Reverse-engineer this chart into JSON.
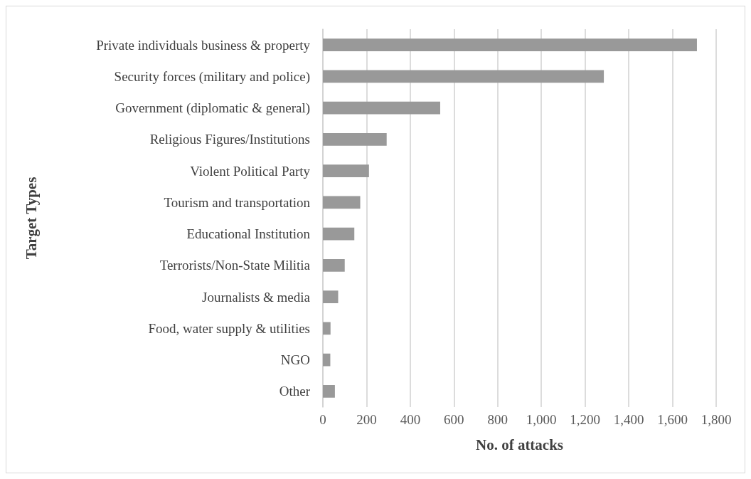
{
  "chart_data": {
    "type": "bar",
    "orientation": "horizontal",
    "xlabel": "No. of attacks",
    "ylabel": "Target Types",
    "categories": [
      "Private individuals business & property",
      "Security forces (military and police)",
      "Government (diplomatic & general)",
      "Religious Figures/Institutions",
      "Violent Political Party",
      "Tourism and transportation",
      "Educational Institution",
      "Terrorists/Non-State Militia",
      "Journalists & media",
      "Food, water supply & utilities",
      "NGO",
      "Other"
    ],
    "values": [
      1712,
      1286,
      537,
      292,
      211,
      171,
      144,
      100,
      70,
      35,
      34,
      55
    ],
    "color": "#999999",
    "xlim": [
      0,
      1800
    ],
    "xticks": [
      0,
      200,
      400,
      600,
      800,
      {
        "value": 1000,
        "label": "1,000"
      },
      {
        "value": 1200,
        "label": "1,200"
      },
      {
        "value": 1400,
        "label": "1,400"
      },
      {
        "value": 1600,
        "label": "1,600"
      },
      {
        "value": 1800,
        "label": "1,800"
      }
    ],
    "grid": "x"
  }
}
